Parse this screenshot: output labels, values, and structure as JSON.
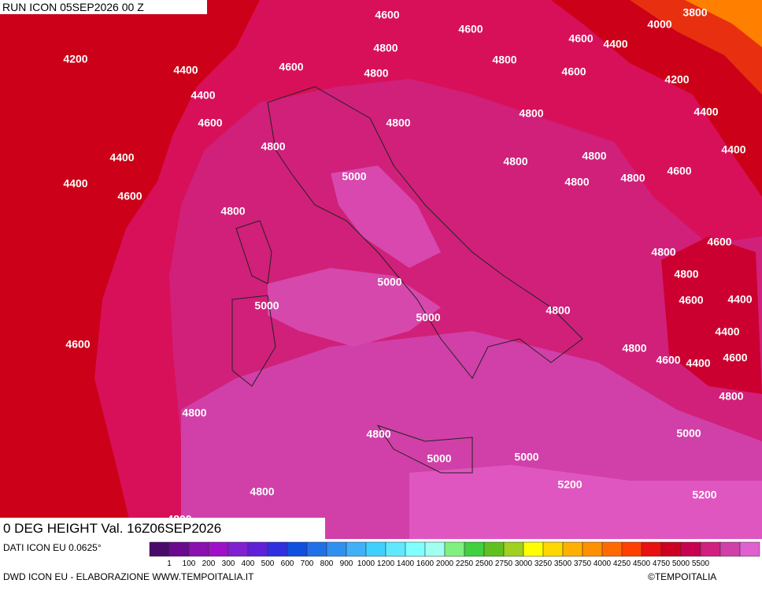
{
  "header": {
    "run": "RUN ICON 05SEP2026 00 Z"
  },
  "map": {
    "labels": [
      "4600",
      "3800",
      "4000",
      "4600",
      "4600",
      "4400",
      "4800",
      "4200",
      "4800",
      "4400",
      "4600",
      "4800",
      "4600",
      "4200",
      "4400",
      "4800",
      "4800",
      "4400",
      "4600",
      "4800",
      "4400",
      "4400",
      "4800",
      "4800",
      "4600",
      "5000",
      "4400",
      "4800",
      "4800",
      "4600",
      "4800",
      "4600",
      "4800",
      "5000",
      "4800",
      "5000",
      "4600",
      "4400",
      "5000",
      "4800",
      "4400",
      "4600",
      "4800",
      "4600",
      "4400",
      "4600",
      "4800",
      "4800",
      "4800",
      "5000",
      "5000",
      "5000",
      "5200",
      "4800",
      "5200",
      "4800"
    ]
  },
  "footer": {
    "title": "0 DEG HEIGHT Val. 16Z06SEP2026",
    "source": "DATI ICON EU 0.0625°",
    "credit": "DWD ICON EU - ELABORAZIONE WWW.TEMPOITALIA.IT",
    "copyright": "©TEMPOITALIA"
  },
  "legend": {
    "labels": [
      "1",
      "100",
      "200",
      "300",
      "400",
      "500",
      "600",
      "700",
      "800",
      "900",
      "1000",
      "1200",
      "1400",
      "1600",
      "2000",
      "2250",
      "2500",
      "2750",
      "3000",
      "3250",
      "3500",
      "3750",
      "4000",
      "4250",
      "4500",
      "4750",
      "5000",
      "5500"
    ],
    "colors": [
      "#4a0a6a",
      "#6a0a8c",
      "#8a10b0",
      "#a010c8",
      "#8020d0",
      "#6020d8",
      "#3030e0",
      "#1050e0",
      "#2070e8",
      "#3090f0",
      "#40b0f8",
      "#40d0ff",
      "#60e8ff",
      "#80ffff",
      "#a0fff0",
      "#80f080",
      "#40d040",
      "#60c020",
      "#a0d020",
      "#ffff00",
      "#ffd800",
      "#ffb000",
      "#ff9000",
      "#ff6a00",
      "#ff4000",
      "#e81010",
      "#cc0020",
      "#c80050",
      "#d02080",
      "#d040a8",
      "#e060d0"
    ]
  }
}
